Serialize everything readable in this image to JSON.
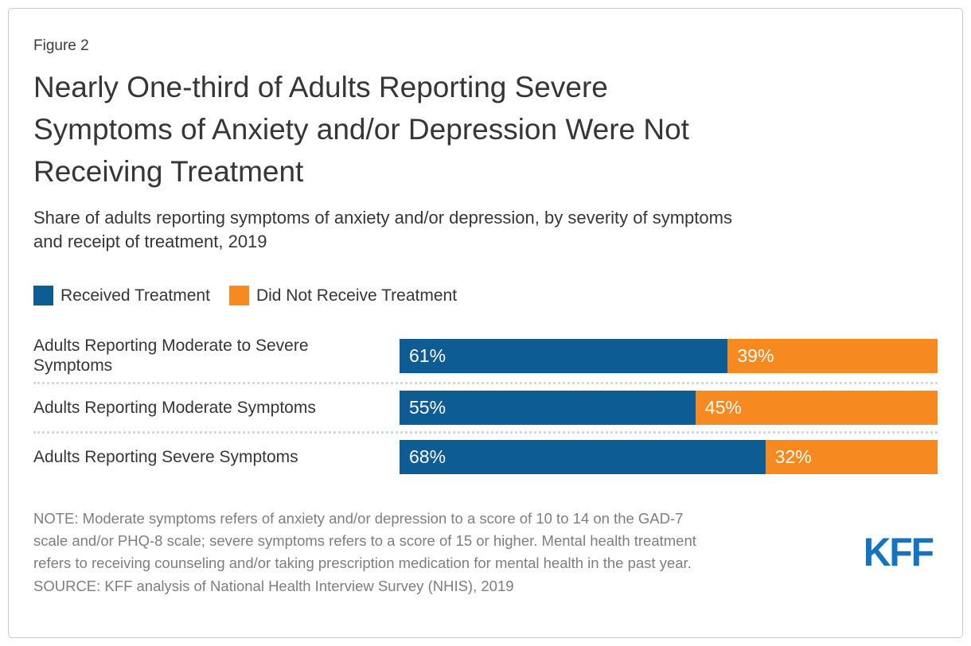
{
  "figure_label": "Figure 2",
  "title_lines": [
    "Nearly One-third of Adults Reporting Severe",
    "Symptoms of Anxiety and/or Depression Were Not",
    "Receiving Treatment"
  ],
  "subtitle_lines": [
    "Share of adults reporting symptoms of anxiety and/or depression, by severity of symptoms",
    "and receipt of treatment, 2019"
  ],
  "legend": {
    "received": {
      "label": "Received Treatment",
      "color": "#0E5C94"
    },
    "not_received": {
      "label": "Did Not Receive Treatment",
      "color": "#F6891F"
    }
  },
  "rows": [
    {
      "label": "Adults Reporting Moderate to Severe Symptoms",
      "received_label": "61%",
      "not_received_label": "39%"
    },
    {
      "label": "Adults Reporting Moderate Symptoms",
      "received_label": "55%",
      "not_received_label": "45%"
    },
    {
      "label": "Adults Reporting Severe Symptoms",
      "received_label": "68%",
      "not_received_label": "32%"
    }
  ],
  "chart_data": {
    "type": "bar",
    "orientation": "horizontal",
    "stacked": true,
    "title": "Nearly One-third of Adults Reporting Severe Symptoms of Anxiety and/or Depression Were Not Receiving Treatment",
    "subtitle": "Share of adults reporting symptoms of anxiety and/or depression, by severity of symptoms and receipt of treatment, 2019",
    "categories": [
      "Adults Reporting Moderate to Severe Symptoms",
      "Adults Reporting Moderate Symptoms",
      "Adults Reporting Severe Symptoms"
    ],
    "series": [
      {
        "name": "Received Treatment",
        "values": [
          61,
          55,
          68
        ],
        "color": "#0E5C94"
      },
      {
        "name": "Did Not Receive Treatment",
        "values": [
          39,
          45,
          32
        ],
        "color": "#F6891F"
      }
    ],
    "value_unit": "percent",
    "xlim": [
      0,
      100
    ],
    "grid": false,
    "legend_position": "top",
    "data_labels": true
  },
  "note_lines": [
    "NOTE: Moderate symptoms refers of anxiety and/or depression to a score of 10 to 14 on the GAD-7",
    "scale and/or PHQ-8 scale; severe symptoms refers to a score of 15 or higher. Mental health treatment",
    "refers to receiving counseling and/or taking prescription medication for mental health in the past year."
  ],
  "source": "SOURCE: KFF analysis of National Health Interview Survey (NHIS), 2019",
  "logo": {
    "text": "KFF",
    "color": "#1375C2"
  },
  "colors": {
    "bar_blue": "#0E5C94",
    "bar_orange": "#F6891F",
    "text_dark": "#363636",
    "text_gray": "#7E7E7E",
    "divider": "#D8D8D8",
    "frame_border": "#C9C9C9",
    "value_label": "#FFFFFF"
  }
}
